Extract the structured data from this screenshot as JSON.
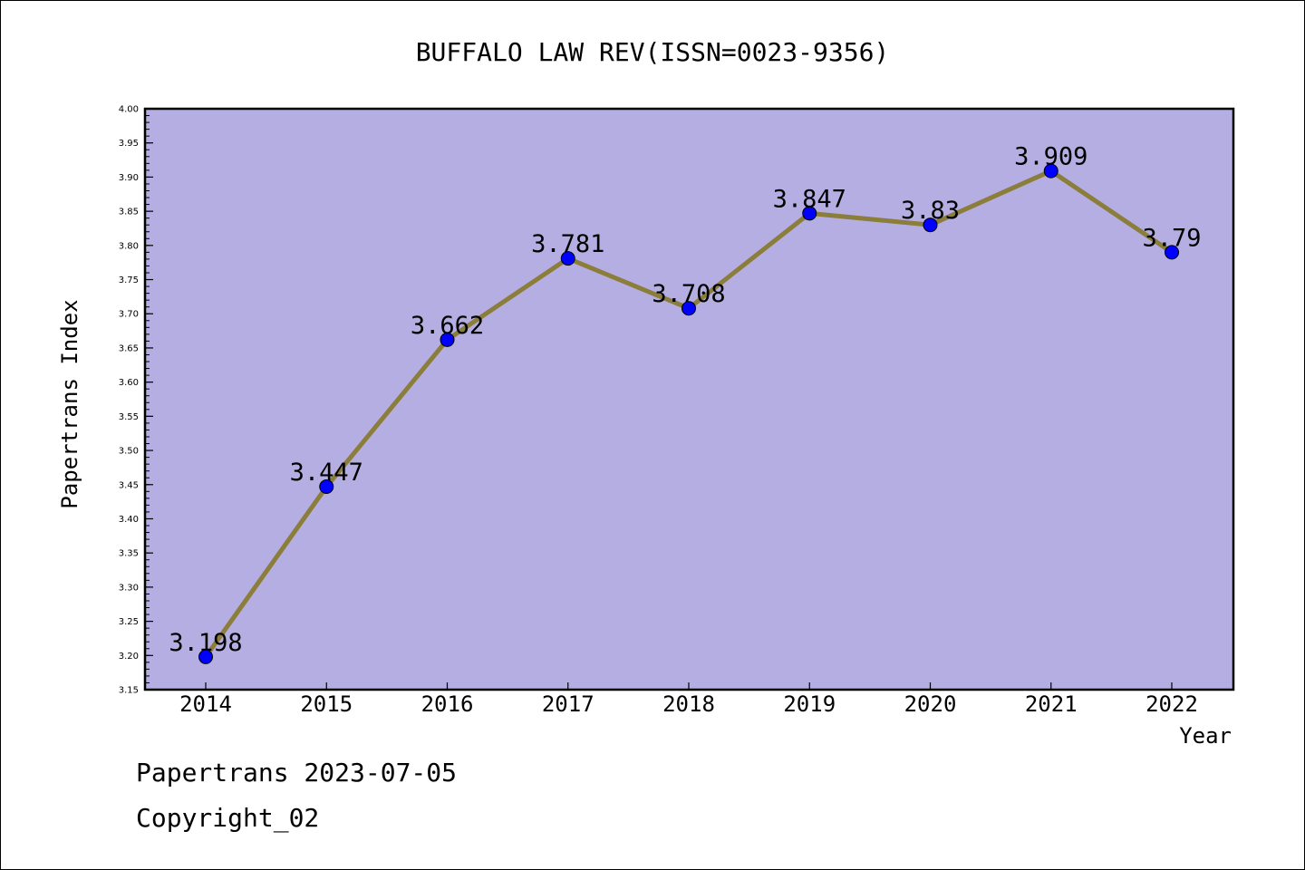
{
  "chart_data": {
    "type": "line",
    "title": "BUFFALO LAW REV(ISSN=0023-9356)",
    "xlabel": "Year",
    "ylabel": "Papertrans Index",
    "categories": [
      "2014",
      "2015",
      "2016",
      "2017",
      "2018",
      "2019",
      "2020",
      "2021",
      "2022"
    ],
    "series": [
      {
        "values": [
          3.198,
          3.447,
          3.662,
          3.781,
          3.708,
          3.847,
          3.83,
          3.909,
          3.79
        ],
        "labels": [
          "3.198",
          "3.447",
          "3.662",
          "3.781",
          "3.708",
          "3.847",
          "3.83",
          "3.909",
          "3.79"
        ],
        "line_color": "#8b7d3a",
        "marker_color": "#0000ff"
      }
    ],
    "ylim": [
      3.15,
      4.0
    ],
    "yticks": [
      "3.15",
      "3.20",
      "3.25",
      "3.30",
      "3.35",
      "3.40",
      "3.45",
      "3.50",
      "3.55",
      "3.60",
      "3.65",
      "3.70",
      "3.75",
      "3.80",
      "3.85",
      "3.90",
      "3.95",
      "4.00"
    ],
    "plot_background": "#b5aee2",
    "grid": false,
    "legend": "none"
  },
  "footer": {
    "line1": "Papertrans 2023-07-05",
    "line2": "Copyright_02"
  }
}
